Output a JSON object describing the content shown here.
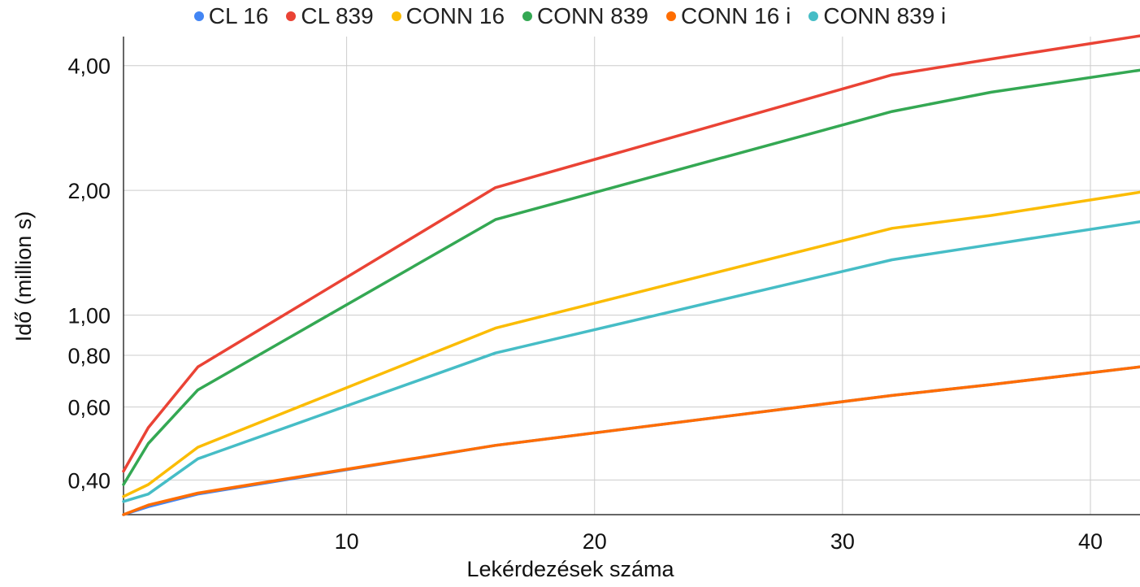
{
  "chart_data": {
    "type": "line",
    "xlabel": "Lekérdezések száma",
    "ylabel": "Idő (million s)",
    "y_scale": "log",
    "xlim": [
      1,
      42
    ],
    "ylim": [
      0.33,
      4.7
    ],
    "x_ticks": [
      10,
      20,
      30,
      40
    ],
    "x_tick_labels": [
      "10",
      "20",
      "30",
      "40"
    ],
    "y_ticks": [
      0.4,
      0.6,
      0.8,
      1.0,
      2.0,
      4.0
    ],
    "y_tick_labels": [
      "0,40",
      "0,60",
      "0,80",
      "1,00",
      "2,00",
      "4,00"
    ],
    "grid": true,
    "legend_position": "top-center",
    "x": [
      1,
      2,
      4,
      16,
      32,
      36,
      42
    ],
    "series": [
      {
        "name": "CL 16",
        "color": "#4285F4",
        "values": [
          0.33,
          0.345,
          0.37,
          0.485,
          0.64,
          0.68,
          0.75
        ]
      },
      {
        "name": "CL 839",
        "color": "#EA4335",
        "values": [
          0.42,
          0.535,
          0.75,
          2.03,
          3.8,
          4.15,
          4.72
        ]
      },
      {
        "name": "CONN 16",
        "color": "#FBBC04",
        "values": [
          0.365,
          0.39,
          0.48,
          0.93,
          1.62,
          1.74,
          1.98
        ]
      },
      {
        "name": "CONN 839",
        "color": "#34A853",
        "values": [
          0.39,
          0.49,
          0.66,
          1.7,
          3.1,
          3.45,
          3.9
        ]
      },
      {
        "name": "CONN 16 i",
        "color": "#FF6D01",
        "values": [
          0.33,
          0.348,
          0.372,
          0.485,
          0.64,
          0.68,
          0.75
        ]
      },
      {
        "name": "CONN 839 i",
        "color": "#46BDC6",
        "values": [
          0.355,
          0.37,
          0.45,
          0.81,
          1.36,
          1.48,
          1.68
        ]
      }
    ]
  }
}
